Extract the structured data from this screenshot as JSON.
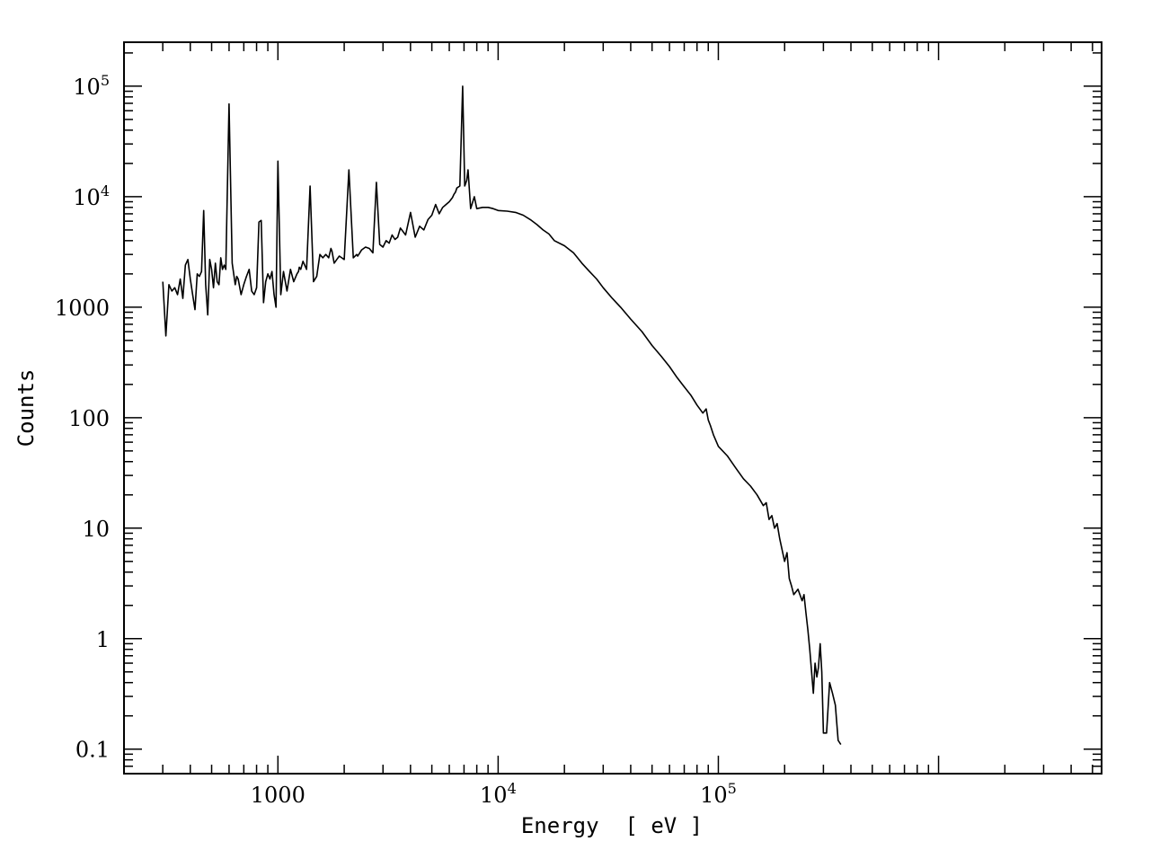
{
  "chart_data": {
    "type": "line",
    "title": "",
    "xlabel": "Energy  [ eV ]",
    "ylabel": "Counts",
    "x_scale": "log",
    "y_scale": "log",
    "xlim": [
      200,
      5500000
    ],
    "ylim": [
      0.06,
      250000
    ],
    "grid": false,
    "legend": "none",
    "line_color": "#000000",
    "x_ticks": [
      {
        "value": 1000,
        "label": "1000",
        "base": "",
        "exp": ""
      },
      {
        "value": 10000,
        "label": "",
        "base": "10",
        "exp": "4"
      },
      {
        "value": 100000,
        "label": "",
        "base": "10",
        "exp": "5"
      }
    ],
    "y_ticks": [
      {
        "value": 0.1,
        "label": "0.1",
        "base": "",
        "exp": ""
      },
      {
        "value": 1,
        "label": "1",
        "base": "",
        "exp": ""
      },
      {
        "value": 10,
        "label": "10",
        "base": "",
        "exp": ""
      },
      {
        "value": 100,
        "label": "100",
        "base": "",
        "exp": ""
      },
      {
        "value": 1000,
        "label": "1000",
        "base": "",
        "exp": ""
      },
      {
        "value": 10000,
        "label": "",
        "base": "10",
        "exp": "4"
      },
      {
        "value": 100000,
        "label": "",
        "base": "10",
        "exp": "5"
      }
    ],
    "series": [
      {
        "x": [
          300,
          310,
          320,
          330,
          340,
          350,
          360,
          370,
          380,
          390,
          400,
          410,
          420,
          430,
          440,
          450,
          460,
          470,
          480,
          490,
          500,
          510,
          520,
          530,
          540,
          550,
          560,
          570,
          580,
          600,
          620,
          640,
          650,
          660,
          680,
          700,
          720,
          740,
          760,
          780,
          800,
          820,
          840,
          860,
          880,
          900,
          920,
          940,
          960,
          980,
          1000,
          1030,
          1060,
          1100,
          1140,
          1180,
          1220,
          1240,
          1250,
          1270,
          1300,
          1350,
          1400,
          1450,
          1500,
          1550,
          1600,
          1650,
          1700,
          1740,
          1760,
          1800,
          1850,
          1900,
          2000,
          2100,
          2200,
          2280,
          2300,
          2330,
          2400,
          2500,
          2600,
          2700,
          2800,
          2900,
          3000,
          3100,
          3200,
          3300,
          3400,
          3500,
          3600,
          3800,
          4000,
          4200,
          4400,
          4600,
          4800,
          5000,
          5200,
          5400,
          5600,
          5800,
          6000,
          6200,
          6300,
          6400,
          6500,
          6700,
          6900,
          7050,
          7200,
          7300,
          7500,
          7800,
          8000,
          8500,
          9000,
          9500,
          10000,
          11000,
          12000,
          13000,
          14000,
          15000,
          16000,
          17000,
          18000,
          20000,
          22000,
          24000,
          26000,
          28000,
          30000,
          33000,
          36000,
          40000,
          45000,
          50000,
          55000,
          60000,
          65000,
          70000,
          75000,
          80000,
          85000,
          88000,
          90000,
          92000,
          95000,
          100000,
          110000,
          120000,
          130000,
          140000,
          150000,
          160000,
          165000,
          170000,
          175000,
          180000,
          185000,
          190000,
          200000,
          205000,
          210000,
          215000,
          220000,
          230000,
          240000,
          245000,
          250000,
          255000,
          260000,
          270000,
          275000,
          280000,
          285000,
          290000,
          295000,
          300000,
          310000,
          320000,
          330000,
          340000,
          350000,
          360000
        ],
        "y": [
          1700,
          550,
          1600,
          1400,
          1500,
          1300,
          1800,
          1200,
          2400,
          2700,
          1800,
          1300,
          950,
          2000,
          1900,
          2100,
          7500,
          1600,
          850,
          2700,
          2200,
          1500,
          2500,
          1700,
          1600,
          2800,
          2200,
          2400,
          2200,
          69000,
          2500,
          1600,
          1900,
          1800,
          1300,
          1600,
          1900,
          2200,
          1400,
          1300,
          1500,
          5900,
          6100,
          1100,
          1700,
          2000,
          1800,
          2100,
          1300,
          1000,
          21000,
          1300,
          2100,
          1400,
          2200,
          1700,
          2000,
          2100,
          2300,
          2200,
          2600,
          2200,
          12500,
          1700,
          1900,
          3000,
          2800,
          3000,
          2800,
          3400,
          3200,
          2500,
          2700,
          2900,
          2700,
          17500,
          2800,
          3000,
          2900,
          3000,
          3300,
          3500,
          3400,
          3100,
          13500,
          3700,
          3500,
          4000,
          3800,
          4500,
          4100,
          4300,
          5200,
          4500,
          7200,
          4300,
          5400,
          5000,
          6200,
          6800,
          8500,
          7000,
          8000,
          8500,
          9000,
          9800,
          10500,
          11000,
          12000,
          12500,
          100000,
          12500,
          14000,
          17500,
          7800,
          10000,
          7800,
          8000,
          8000,
          7800,
          7500,
          7400,
          7200,
          6800,
          6200,
          5600,
          5000,
          4600,
          4000,
          3600,
          3100,
          2500,
          2100,
          1800,
          1500,
          1200,
          1000,
          780,
          600,
          450,
          360,
          290,
          230,
          190,
          160,
          130,
          110,
          120,
          95,
          85,
          70,
          55,
          45,
          35,
          28,
          24,
          20,
          16,
          17,
          12,
          13,
          10,
          11,
          8,
          5,
          6,
          3.5,
          3,
          2.5,
          2.8,
          2.2,
          2.5,
          1.7,
          1.2,
          0.8,
          0.32,
          0.6,
          0.45,
          0.55,
          0.9,
          0.5,
          0.14,
          0.14,
          0.4,
          0.32,
          0.25,
          0.12,
          0.11
        ]
      }
    ]
  }
}
